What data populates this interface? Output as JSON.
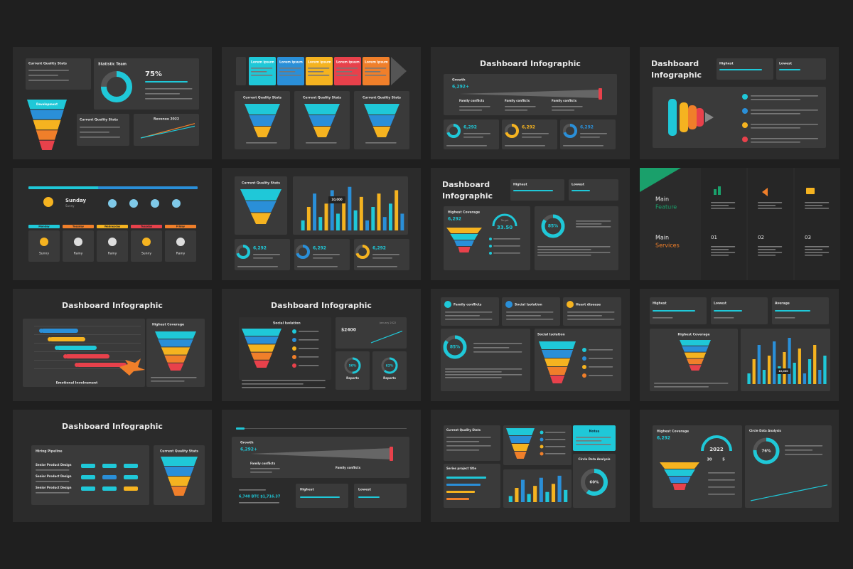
{
  "slides": [
    {
      "texts": [
        "Current Quality Stats",
        "Statistic Team",
        "75%",
        "Current Quality Stats",
        "Revenue 2022",
        "Development"
      ]
    },
    {
      "texts": [
        "Lorem ipsum",
        "Lorem ipsum",
        "Lorem ipsum",
        "Lorem ipsum",
        "Lorem ipsum",
        "Current Quality Stats",
        "Current Quality Stats",
        "Current Quality Stats"
      ]
    },
    {
      "texts": [
        "Dashboard Infographic",
        "Growth",
        "6,292+",
        "Family conflicts",
        "Family conflicts",
        "Family conflicts",
        "6,292",
        "6,292",
        "6,292"
      ]
    },
    {
      "texts": [
        "Dashboard",
        "Infographic",
        "Highest",
        "Lowest"
      ]
    },
    {
      "texts": [
        "Sunday",
        "Sunny",
        "Monday",
        "Tuesday",
        "Wednesday",
        "Tuesday",
        "Friday",
        "Sunny",
        "Rainy",
        "Rainy",
        "Sunny",
        "Rainy"
      ]
    },
    {
      "texts": [
        "Current Quality Stats",
        "10,000",
        "6,292",
        "6,292",
        "6,292"
      ]
    },
    {
      "texts": [
        "Dashboard",
        "Infographic",
        "Highest",
        "Lowest",
        "Highest Coverage",
        "6,292",
        "Target",
        "33.50",
        "85%"
      ]
    },
    {
      "texts": [
        "Main",
        "Feature",
        "Main",
        "Services",
        "01",
        "02",
        "03"
      ]
    },
    {
      "texts": [
        "Dashboard Infographic",
        "Highest Coverage",
        "Emotional Involvement"
      ]
    },
    {
      "texts": [
        "Dashboard Infographic",
        "Social Isolation",
        "January 2022",
        "$2400",
        "50%",
        "62%",
        "Reports",
        "Reports"
      ]
    },
    {
      "texts": [
        "Family conflicts",
        "Social Isolation",
        "Heart disease",
        "85%",
        "Social Isolation"
      ]
    },
    {
      "texts": [
        "Highest",
        "Lowest",
        "Average",
        "Highest Coverage",
        "10,000"
      ]
    },
    {
      "texts": [
        "Dashboard Infographic",
        "Hiring Pipeline",
        "Current Quality Stats",
        "Senior Product Design",
        "Senior Product Design",
        "Senior Product Design"
      ]
    },
    {
      "texts": [
        "Growth",
        "6,292+",
        "Family conflicts",
        "Family conflicts",
        "6,740 BTC $1,716.37",
        "Highest",
        "Lowest"
      ]
    },
    {
      "texts": [
        "Current Quality Stats",
        "Series project title",
        "Notes",
        "Circle Data Analysis",
        "60%"
      ]
    },
    {
      "texts": [
        "Highest Coverage",
        "6,292",
        "2022",
        "30",
        "5",
        "Circle Data Analysis",
        "76%"
      ]
    }
  ]
}
